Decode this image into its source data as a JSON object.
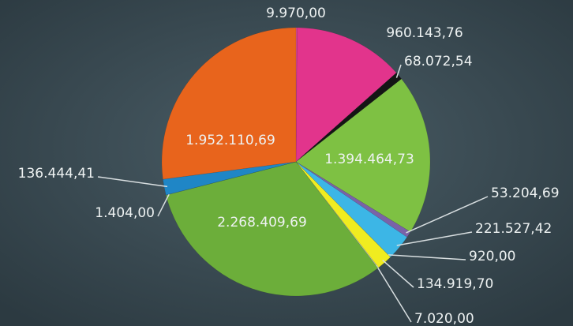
{
  "chart_data": {
    "type": "pie",
    "categories": [
      null,
      null,
      null,
      null,
      null,
      null,
      null,
      null,
      null,
      null,
      null,
      null,
      null
    ],
    "values": [
      9970,
      960143.76,
      68072.54,
      1394464.73,
      53204.69,
      221527.42,
      920,
      134919.7,
      7020,
      2268409.69,
      1404,
      136444.41,
      1952110.69
    ],
    "value_labels": [
      "9.970,00",
      "960.143,76",
      "68.072,54",
      "1.394.464,73",
      "53.204,69",
      "221.527,42",
      "920,00",
      "134.919,70",
      "7.020,00",
      "2.268.409,69",
      "1.404,00",
      "136.444,41",
      "1.952.110,69"
    ],
    "colors": [
      "#d94f8f",
      "#e2348c",
      "#151515",
      "#7ec143",
      "#7a62a8",
      "#3cb6e6",
      "#d8dde0",
      "#f0ec20",
      "#c9d1c2",
      "#6cae3a",
      "#9aa6ad",
      "#1f86c6",
      "#e8641c"
    ]
  }
}
